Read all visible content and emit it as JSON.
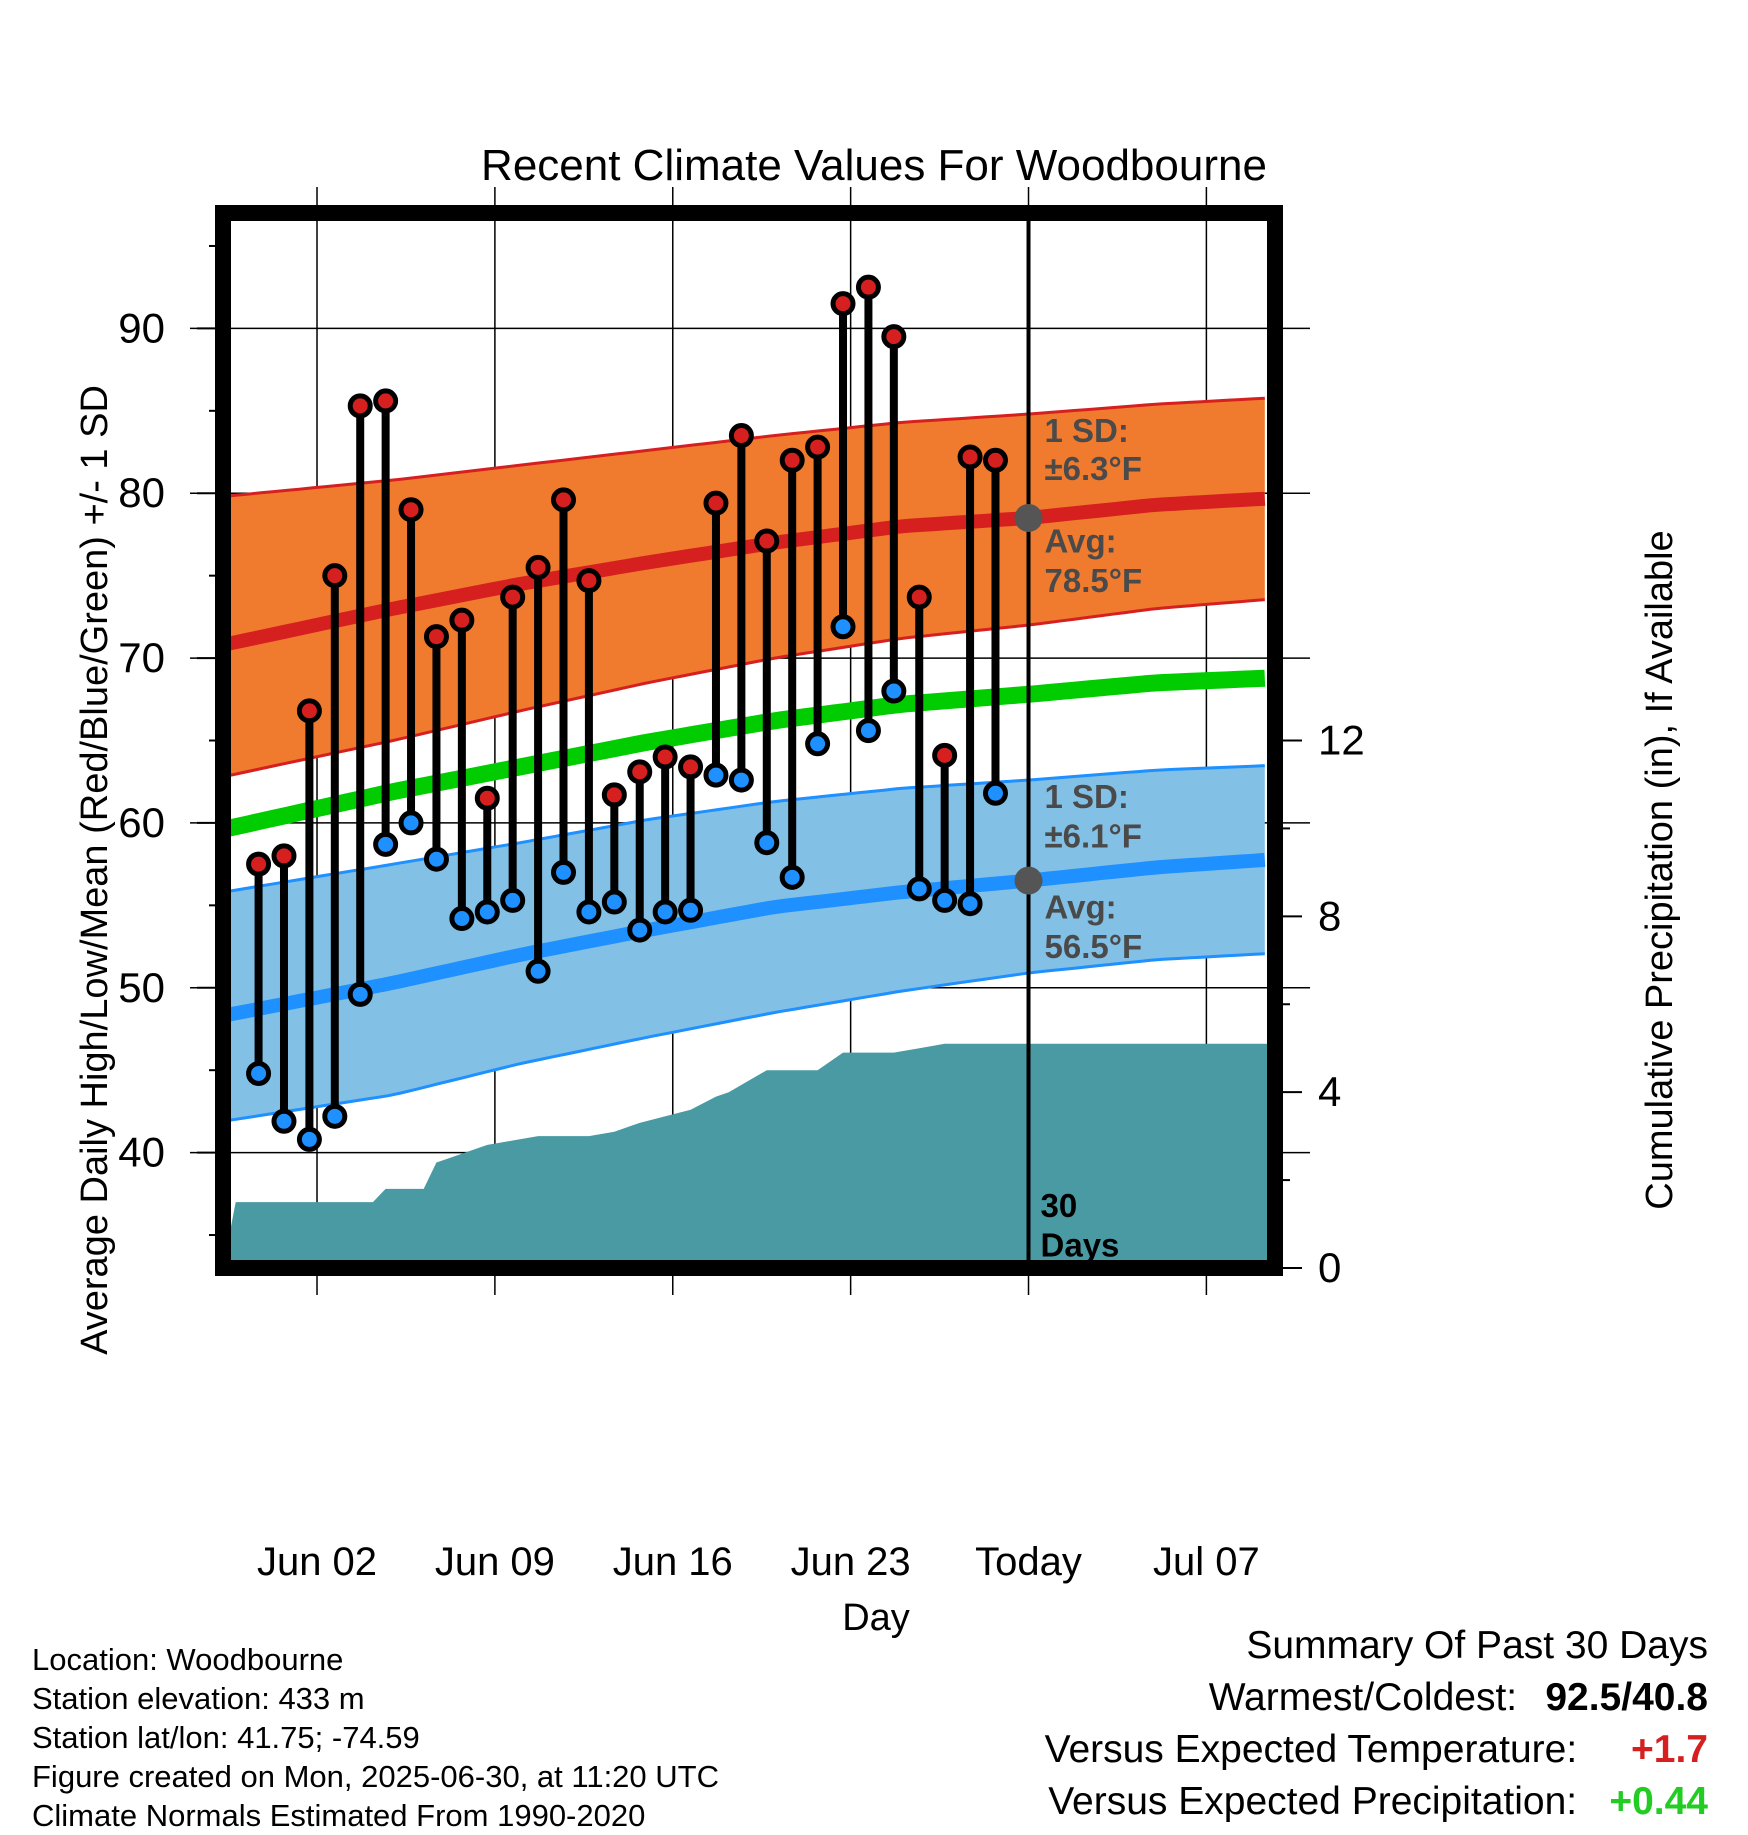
{
  "chart_data": {
    "type": "line",
    "title": "Recent Climate Values For Woodbourne",
    "xlabel": "Day",
    "ylabel": "Average Daily High/Low/Mean (Red/Blue/Green) +/- 1 SD",
    "y2label": "Cumulative Precipitation (in), If Available",
    "ylim": [
      33,
      97
    ],
    "y2lim": [
      0,
      24
    ],
    "x_tick_labels": [
      "Jun 02",
      "Jun 09",
      "Jun 16",
      "Jun 23",
      "Today",
      "Jul 07"
    ],
    "x_tick_days": [
      2,
      9,
      16,
      23,
      30,
      37
    ],
    "y_ticks": [
      40,
      50,
      60,
      70,
      80,
      90
    ],
    "y2_ticks": [
      0,
      4,
      8,
      12
    ],
    "x_range_days": [
      -1.7,
      39.7
    ],
    "grid": true,
    "today_day": 30,
    "today_label_number": "30",
    "today_label_word": "Days",
    "days": [
      -0.3,
      0.7,
      1.7,
      2.7,
      3.7,
      4.7,
      5.7,
      6.7,
      7.7,
      8.7,
      9.7,
      10.7,
      11.7,
      12.7,
      13.7,
      14.7,
      15.7,
      16.7,
      17.7,
      18.7,
      19.7,
      20.7,
      21.7,
      22.7,
      23.7,
      24.7,
      25.7,
      26.7,
      27.7,
      28.7
    ],
    "series": [
      {
        "name": "Daily High",
        "color": "#d62020",
        "values": [
          57.5,
          58.0,
          66.8,
          75.0,
          85.3,
          85.6,
          79.0,
          71.3,
          72.3,
          61.5,
          73.7,
          75.5,
          79.6,
          74.7,
          61.7,
          63.1,
          64.0,
          63.4,
          79.4,
          83.5,
          77.1,
          82.0,
          82.8,
          91.5,
          92.5,
          89.5,
          73.7,
          64.1,
          82.2,
          82.0
        ]
      },
      {
        "name": "Daily Low",
        "color": "#1e90ff",
        "values": [
          44.8,
          41.9,
          40.8,
          42.2,
          49.6,
          58.7,
          60.0,
          57.8,
          54.2,
          54.6,
          55.3,
          51.0,
          57.0,
          54.6,
          55.2,
          53.5,
          54.6,
          54.7,
          62.9,
          62.6,
          58.8,
          56.7,
          64.8,
          71.9,
          65.6,
          68.0,
          56.0,
          55.3,
          55.1,
          61.8
        ]
      }
    ],
    "normals": {
      "days": [
        -1.7,
        5,
        10,
        15,
        20,
        25,
        30,
        35,
        39.7
      ],
      "avg_high": [
        70.8,
        73.0,
        74.5,
        75.8,
        77.0,
        78.0,
        78.5,
        79.3,
        79.7
      ],
      "avg_high_sd_upper": [
        79.8,
        80.8,
        81.7,
        82.6,
        83.5,
        84.3,
        84.8,
        85.4,
        85.8
      ],
      "avg_high_sd_lower": [
        62.8,
        65.0,
        66.8,
        68.5,
        70.0,
        71.2,
        72.0,
        73.0,
        73.6
      ],
      "avg_low": [
        48.3,
        50.3,
        52.0,
        53.5,
        54.9,
        55.8,
        56.5,
        57.3,
        57.8
      ],
      "avg_low_sd_upper": [
        55.8,
        57.5,
        58.8,
        60.2,
        61.3,
        62.1,
        62.6,
        63.2,
        63.5
      ],
      "avg_low_sd_lower": [
        41.9,
        43.5,
        45.4,
        47.0,
        48.5,
        49.8,
        50.9,
        51.7,
        52.1
      ],
      "avg_mean": [
        59.6,
        61.9,
        63.4,
        64.9,
        66.2,
        67.2,
        67.8,
        68.5,
        68.8
      ],
      "high_sd_color": "#f07b2e",
      "low_sd_color": "#82c0e6",
      "mean_color": "#00cc00"
    },
    "precip": {
      "color": "#4a9aa4",
      "days": [
        -1.7,
        -1.2,
        0.7,
        1.7,
        4.2,
        4.7,
        6.2,
        6.7,
        7.2,
        8.7,
        9.7,
        10.7,
        12.7,
        13.7,
        14.7,
        16.7,
        17.7,
        18.2,
        19.7,
        20.7,
        21.7,
        22.7,
        23.7,
        24.7,
        25.7,
        26.7,
        30.0,
        39.7
      ],
      "values": [
        0.0,
        1.5,
        1.5,
        1.5,
        1.5,
        1.8,
        1.8,
        2.4,
        2.5,
        2.8,
        2.9,
        3.0,
        3.0,
        3.1,
        3.3,
        3.6,
        3.9,
        4.0,
        4.5,
        4.5,
        4.5,
        4.9,
        4.9,
        4.9,
        5.0,
        5.1,
        5.1,
        5.1
      ]
    },
    "annotations": {
      "high_sd_line1": "1 SD:",
      "high_sd_line2": "±6.3°F",
      "high_avg_line1": "Avg:",
      "high_avg_line2": "78.5°F",
      "low_sd_line1": "1 SD:",
      "low_sd_line2": "±6.1°F",
      "low_avg_line1": "Avg:",
      "low_avg_line2": "56.5°F",
      "text_color": "#4a4a4a"
    }
  },
  "footer": {
    "location": "Location: Woodbourne",
    "elevation": "Station elevation: 433 m",
    "latlon": "Station lat/lon: 41.75; -74.59",
    "created": "Figure created on Mon, 2025-06-30, at 11:20 UTC",
    "normals": "Climate Normals Estimated From 1990-2020"
  },
  "summary": {
    "title": "Summary Of Past 30 Days",
    "warm_cold_label": "Warmest/Coldest:",
    "warm_cold_value": "92.5/40.8",
    "temp_label": "Versus Expected Temperature:",
    "temp_value": "+1.7",
    "temp_color": "#d62020",
    "precip_label": "Versus Expected Precipitation:",
    "precip_value": "+0.44",
    "precip_color": "#22cc22"
  }
}
